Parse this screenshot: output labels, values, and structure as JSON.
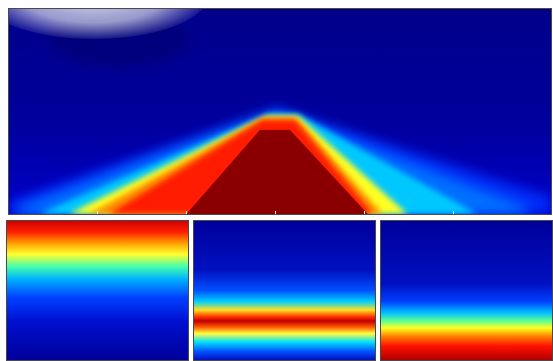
{
  "figure": {
    "panels": [
      {
        "id": "top",
        "description_colormap": "jet"
      },
      {
        "id": "bottom-left"
      },
      {
        "id": "bottom-middle"
      },
      {
        "id": "bottom-right"
      }
    ],
    "colors": {
      "deep_blue": "#00008f",
      "blue": "#0000ff",
      "cyan": "#00ffff",
      "yellow": "#ffff00",
      "orange": "#ff8000",
      "red": "#ff0000",
      "dark_red": "#800000"
    }
  }
}
